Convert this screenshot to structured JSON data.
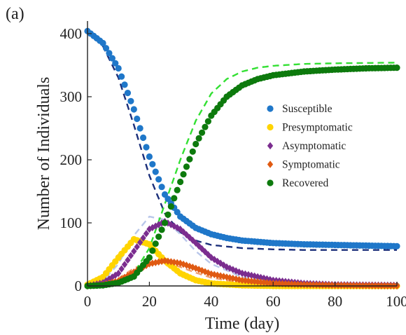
{
  "panel_label": "(a)",
  "chart_data": {
    "type": "scatter",
    "title": "",
    "xlabel": "Time (day)",
    "ylabel": "Number of Individuals",
    "xlim": [
      0,
      100
    ],
    "ylim": [
      0,
      420
    ],
    "xticks": [
      0,
      20,
      40,
      60,
      80,
      100
    ],
    "yticks": [
      0,
      100,
      200,
      300,
      400
    ],
    "grid": false,
    "legend": "center-right",
    "series": [
      {
        "name": "Susceptible",
        "color": "#1f77c9",
        "marker": "circle",
        "x": [
          0,
          5,
          10,
          15,
          20,
          25,
          30,
          35,
          40,
          45,
          50,
          60,
          70,
          80,
          90,
          100
        ],
        "y": [
          404,
          385,
          345,
          280,
          205,
          145,
          110,
          92,
          82,
          76,
          72,
          68,
          66,
          65,
          64,
          63
        ]
      },
      {
        "name": "Presymptomatic",
        "color": "#ffd400",
        "marker": "circle",
        "x": [
          0,
          5,
          10,
          15,
          20,
          25,
          30,
          35,
          40,
          50,
          60,
          80,
          100
        ],
        "y": [
          2,
          14,
          45,
          74,
          66,
          40,
          20,
          9,
          4,
          1,
          0,
          0,
          0
        ]
      },
      {
        "name": "Asymptomatic",
        "color": "#7b2d8f",
        "marker": "diamond",
        "x": [
          0,
          5,
          10,
          15,
          20,
          25,
          30,
          35,
          40,
          45,
          50,
          60,
          70,
          80,
          100
        ],
        "y": [
          0,
          5,
          20,
          55,
          90,
          102,
          90,
          68,
          45,
          30,
          20,
          9,
          4,
          2,
          1
        ]
      },
      {
        "name": "Symptomatic",
        "color": "#e05a12",
        "marker": "diamond",
        "x": [
          0,
          5,
          10,
          15,
          20,
          25,
          30,
          35,
          40,
          50,
          60,
          70,
          80,
          100
        ],
        "y": [
          0,
          2,
          8,
          22,
          35,
          40,
          36,
          28,
          19,
          9,
          4,
          2,
          1,
          0
        ]
      },
      {
        "name": "Recovered",
        "color": "#0d7a0d",
        "marker": "circle",
        "x": [
          0,
          5,
          10,
          15,
          20,
          25,
          30,
          35,
          40,
          45,
          50,
          55,
          60,
          70,
          80,
          90,
          100
        ],
        "y": [
          0,
          1,
          5,
          15,
          45,
          100,
          165,
          225,
          270,
          300,
          318,
          328,
          334,
          340,
          343,
          345,
          346
        ]
      }
    ],
    "model_curves": [
      {
        "of": "Susceptible",
        "color": "#1b2f7a",
        "style": "dashed",
        "x": [
          0,
          5,
          10,
          15,
          20,
          25,
          30,
          35,
          40,
          50,
          60,
          70,
          80,
          100
        ],
        "y": [
          404,
          380,
          330,
          255,
          175,
          115,
          85,
          72,
          65,
          60,
          58,
          57,
          57,
          57
        ]
      },
      {
        "of": "Presymptomatic",
        "color": "#ffe066",
        "style": "dashed",
        "x": [
          0,
          5,
          10,
          15,
          20,
          25,
          30,
          35,
          40,
          50,
          60,
          100
        ],
        "y": [
          2,
          15,
          50,
          72,
          62,
          35,
          16,
          7,
          3,
          1,
          0,
          0
        ]
      },
      {
        "of": "Asymptomatic",
        "color": "#b9c7ea",
        "style": "dashed",
        "x": [
          0,
          5,
          10,
          15,
          20,
          25,
          30,
          35,
          40,
          50,
          60,
          80,
          100
        ],
        "y": [
          0,
          8,
          35,
          80,
          110,
          105,
          82,
          55,
          35,
          14,
          6,
          2,
          0
        ]
      },
      {
        "of": "Symptomatic",
        "color": "#f0a070",
        "style": "dashed",
        "x": [
          0,
          5,
          10,
          15,
          20,
          25,
          30,
          35,
          40,
          50,
          60,
          100
        ],
        "y": [
          0,
          3,
          12,
          28,
          38,
          38,
          30,
          21,
          13,
          5,
          2,
          0
        ]
      },
      {
        "of": "Recovered",
        "color": "#33e033",
        "style": "dashed",
        "x": [
          0,
          10,
          15,
          20,
          25,
          30,
          35,
          40,
          45,
          50,
          55,
          60,
          70,
          80,
          100
        ],
        "y": [
          0,
          5,
          20,
          60,
          130,
          200,
          262,
          305,
          328,
          340,
          346,
          349,
          352,
          353,
          354
        ]
      }
    ]
  }
}
